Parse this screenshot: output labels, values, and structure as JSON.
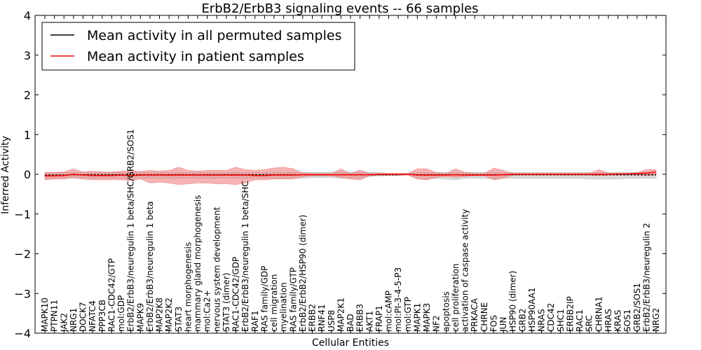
{
  "chart_data": {
    "type": "line",
    "title": "ErbB2/ErbB3 signaling events -- 66 samples",
    "xlabel": "Cellular Entities",
    "ylabel": "Inferred Activity",
    "ylim": [
      -4,
      4
    ],
    "yticks": [
      -4,
      -3,
      -2,
      -1,
      0,
      1,
      2,
      3,
      4
    ],
    "grid": false,
    "legend_position": "top-left",
    "categories": [
      "MAPK10",
      "PTPN11",
      "JAK2",
      "NRG1",
      "DOCK7",
      "NFATC4",
      "PPP3CB",
      "RAC1-CDC42/GTP",
      "mol:GDP",
      "ErbB2/ErbB3/neuregulin 1 beta/SHC/GRB2/SOS1",
      "MAPK9",
      "ErbB2/ErbB3/neuregulin 1 beta",
      "MAP2K8",
      "MAP2K2",
      "STAT3",
      "heart morphogenesis",
      "mammary gland morphogenesis",
      "mol:Ca2+",
      "nervous system development",
      "STAT3 (dimer)",
      "RAC1-CDC42/GDP",
      "ErbB2/ErbB3/neuregulin 1 beta/SHC",
      "RAF1",
      "RAS family/GDP",
      "cell migration",
      "myelination",
      "RAS family/GTP",
      "ErbB2/ErbB2/HSP90 (dimer)",
      "ERBB2",
      "RNF41",
      "USP8",
      "MAP2K1",
      "BAD",
      "ERBB3",
      "AKT1",
      "FRAP1",
      "mol:cAMP",
      "mol:PI-3-4-5-P3",
      "mol:GTP",
      "MAPK1",
      "MAPK3",
      "NF2",
      "apoptosis",
      "cell proliferation",
      "activation of caspase activity",
      "PRKACA",
      "CHRNE",
      "FOS",
      "JUN",
      "HSP90 (dimer)",
      "GRB2",
      "HSP90AA1",
      "NRAS",
      "CDC42",
      "SHC1",
      "ERBB2IP",
      "RAC1",
      "SRC",
      "CHRNA1",
      "HRAS",
      "KRAS",
      "SOS1",
      "GRB2/SOS1",
      "ErbB2/ErbB3/neuregulin 2",
      "NRG2"
    ],
    "series": [
      {
        "name": "Mean activity in all permuted samples",
        "color": "#000000",
        "band_color": "#b0b0b0",
        "values": [
          -0.02,
          -0.02,
          -0.02,
          -0.01,
          -0.01,
          -0.01,
          -0.01,
          -0.01,
          -0.01,
          -0.01,
          -0.01,
          -0.01,
          -0.01,
          -0.01,
          -0.01,
          -0.01,
          -0.01,
          -0.01,
          -0.01,
          -0.01,
          -0.01,
          -0.01,
          -0.01,
          -0.01,
          -0.01,
          -0.01,
          -0.01,
          -0.01,
          -0.01,
          -0.01,
          -0.01,
          -0.01,
          -0.01,
          -0.01,
          -0.01,
          -0.01,
          -0.01,
          -0.01,
          0.0,
          -0.01,
          -0.01,
          -0.01,
          -0.01,
          -0.01,
          -0.01,
          -0.01,
          -0.01,
          -0.01,
          -0.01,
          -0.01,
          -0.01,
          -0.01,
          -0.01,
          -0.01,
          -0.01,
          -0.01,
          -0.01,
          -0.01,
          -0.01,
          -0.01,
          -0.01,
          -0.01,
          -0.01,
          -0.01,
          -0.01
        ],
        "band_upper": [
          0.05,
          0.05,
          0.05,
          0.05,
          0.05,
          0.05,
          0.05,
          0.05,
          0.05,
          0.05,
          0.05,
          0.05,
          0.05,
          0.05,
          0.05,
          0.05,
          0.05,
          0.05,
          0.05,
          0.05,
          0.05,
          0.05,
          0.05,
          0.05,
          0.05,
          0.05,
          0.05,
          0.05,
          0.05,
          0.05,
          0.05,
          0.05,
          0.05,
          0.05,
          0.05,
          0.05,
          0.02,
          0.02,
          0.02,
          0.05,
          0.05,
          0.05,
          0.05,
          0.05,
          0.05,
          0.05,
          0.05,
          0.05,
          0.05,
          0.05,
          0.05,
          0.05,
          0.05,
          0.05,
          0.05,
          0.05,
          0.05,
          0.05,
          0.05,
          0.05,
          0.05,
          0.05,
          0.05,
          0.05,
          0.05
        ],
        "band_lower": [
          -0.1,
          -0.1,
          -0.1,
          -0.1,
          -0.1,
          -0.1,
          -0.1,
          -0.1,
          -0.1,
          -0.1,
          -0.1,
          -0.1,
          -0.1,
          -0.1,
          -0.1,
          -0.1,
          -0.1,
          -0.1,
          -0.1,
          -0.1,
          -0.1,
          -0.1,
          -0.1,
          -0.1,
          -0.1,
          -0.1,
          -0.1,
          -0.1,
          -0.08,
          -0.08,
          -0.08,
          -0.1,
          -0.1,
          -0.1,
          -0.05,
          -0.04,
          -0.03,
          -0.03,
          -0.02,
          -0.1,
          -0.12,
          -0.1,
          -0.12,
          -0.14,
          -0.1,
          -0.1,
          -0.1,
          -0.12,
          -0.1,
          -0.1,
          -0.1,
          -0.1,
          -0.1,
          -0.1,
          -0.1,
          -0.1,
          -0.1,
          -0.12,
          -0.12,
          -0.12,
          -0.12,
          -0.1,
          -0.1,
          -0.1,
          -0.1
        ]
      },
      {
        "name": "Mean activity in patient samples",
        "color": "#ff0000",
        "band_color": "#f08080",
        "values": [
          -0.04,
          -0.04,
          -0.03,
          0.0,
          -0.02,
          -0.03,
          -0.03,
          -0.03,
          -0.02,
          -0.03,
          -0.02,
          -0.02,
          -0.02,
          -0.02,
          -0.02,
          -0.02,
          -0.02,
          -0.02,
          -0.02,
          -0.02,
          -0.02,
          -0.02,
          -0.03,
          -0.03,
          -0.02,
          -0.02,
          -0.02,
          -0.01,
          -0.01,
          -0.01,
          -0.01,
          -0.01,
          -0.01,
          -0.01,
          -0.01,
          0.0,
          0.0,
          0.0,
          0.0,
          -0.02,
          -0.02,
          -0.02,
          -0.02,
          -0.01,
          -0.02,
          -0.02,
          -0.02,
          -0.02,
          -0.01,
          0.0,
          0.0,
          0.0,
          0.0,
          0.0,
          0.0,
          0.0,
          0.0,
          0.0,
          0.0,
          0.0,
          0.01,
          0.01,
          0.02,
          0.03,
          0.06
        ],
        "band_upper": [
          0.05,
          0.05,
          0.06,
          0.14,
          0.06,
          0.08,
          0.06,
          0.06,
          0.08,
          0.1,
          0.07,
          0.1,
          0.08,
          0.1,
          0.18,
          0.1,
          0.08,
          0.1,
          0.1,
          0.1,
          0.18,
          0.12,
          0.1,
          0.12,
          0.16,
          0.18,
          0.14,
          0.04,
          0.02,
          0.02,
          0.02,
          0.14,
          0.02,
          0.11,
          0.02,
          0.02,
          0.02,
          0.02,
          0.02,
          0.14,
          0.14,
          0.04,
          0.02,
          0.14,
          0.05,
          0.02,
          0.02,
          0.16,
          0.1,
          0.02,
          0.02,
          0.02,
          0.02,
          0.02,
          0.02,
          0.02,
          0.02,
          0.02,
          0.12,
          0.03,
          0.02,
          0.02,
          0.04,
          0.12,
          0.12
        ],
        "band_lower": [
          -0.14,
          -0.12,
          -0.12,
          -0.08,
          -0.12,
          -0.14,
          -0.14,
          -0.14,
          -0.14,
          -0.16,
          -0.12,
          -0.22,
          -0.2,
          -0.22,
          -0.26,
          -0.24,
          -0.22,
          -0.22,
          -0.24,
          -0.24,
          -0.26,
          -0.22,
          -0.14,
          -0.14,
          -0.12,
          -0.12,
          -0.12,
          -0.06,
          -0.04,
          -0.04,
          -0.04,
          -0.08,
          -0.12,
          -0.14,
          -0.04,
          -0.02,
          -0.02,
          -0.02,
          -0.02,
          -0.12,
          -0.14,
          -0.08,
          -0.06,
          -0.08,
          -0.06,
          -0.04,
          -0.04,
          -0.14,
          -0.1,
          -0.02,
          -0.02,
          -0.02,
          -0.02,
          -0.02,
          -0.02,
          -0.02,
          -0.02,
          -0.02,
          -0.04,
          -0.02,
          -0.02,
          -0.02,
          -0.02,
          -0.04,
          -0.02
        ]
      }
    ]
  }
}
